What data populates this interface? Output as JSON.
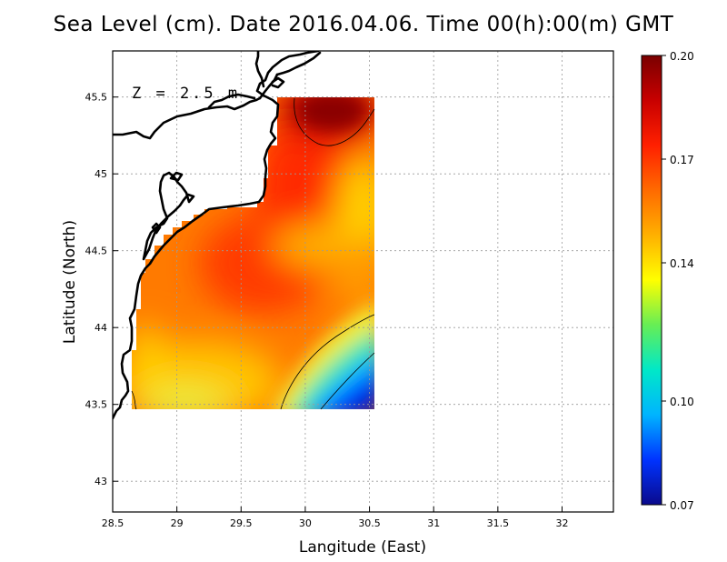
{
  "title": "Sea Level (cm). Date 2016.04.06. Time 00(h):00(m) GMT",
  "depth_label": "Z = 2.5 m",
  "x_axis": {
    "label": "Langitude (East)",
    "ticks": [
      "28.5",
      "29",
      "29.5",
      "30",
      "30.5",
      "31",
      "31.5",
      "32"
    ],
    "range": [
      28.5,
      32.4
    ]
  },
  "y_axis": {
    "label": "Latitude (North)",
    "ticks": [
      "43",
      "43.5",
      "44",
      "44.5",
      "45",
      "45.5"
    ],
    "range": [
      42.8,
      45.8
    ]
  },
  "colorbar": {
    "min": 0.07,
    "max": 0.2,
    "tick_labels": [
      "0.20",
      "0.17",
      "0.14",
      "0.10",
      "0.07"
    ],
    "tick_values": [
      0.2,
      0.17,
      0.14,
      0.1,
      0.07
    ],
    "colors": [
      "#0a0a8c",
      "#0033ff",
      "#00b4ff",
      "#00e8c8",
      "#66ee55",
      "#ffff00",
      "#ffb000",
      "#ff6a00",
      "#ff2000",
      "#c80000",
      "#7a0000"
    ]
  },
  "chart_data": {
    "type": "heatmap",
    "title": "Sea Level (cm). Date 2016.04.06. Time 00(h):00(m) GMT",
    "xlabel": "Langitude (East)",
    "ylabel": "Latitude (North)",
    "xlim": [
      28.5,
      32.4
    ],
    "ylim": [
      42.8,
      45.8
    ],
    "value_range": [
      0.07,
      0.2
    ],
    "grid": true,
    "field_extent": {
      "lon": [
        28.65,
        30.55
      ],
      "lat": [
        43.48,
        45.5
      ]
    },
    "field_samples": [
      {
        "lon": 30.2,
        "lat": 45.45,
        "value": 0.2
      },
      {
        "lon": 30.0,
        "lat": 45.3,
        "value": 0.185
      },
      {
        "lon": 29.9,
        "lat": 45.05,
        "value": 0.183
      },
      {
        "lon": 29.5,
        "lat": 44.45,
        "value": 0.182
      },
      {
        "lon": 29.7,
        "lat": 44.1,
        "value": 0.175
      },
      {
        "lon": 28.9,
        "lat": 44.2,
        "value": 0.172
      },
      {
        "lon": 29.1,
        "lat": 43.55,
        "value": 0.162
      },
      {
        "lon": 30.3,
        "lat": 44.55,
        "value": 0.165
      },
      {
        "lon": 30.3,
        "lat": 43.9,
        "value": 0.13
      },
      {
        "lon": 30.4,
        "lat": 43.6,
        "value": 0.08
      }
    ]
  }
}
